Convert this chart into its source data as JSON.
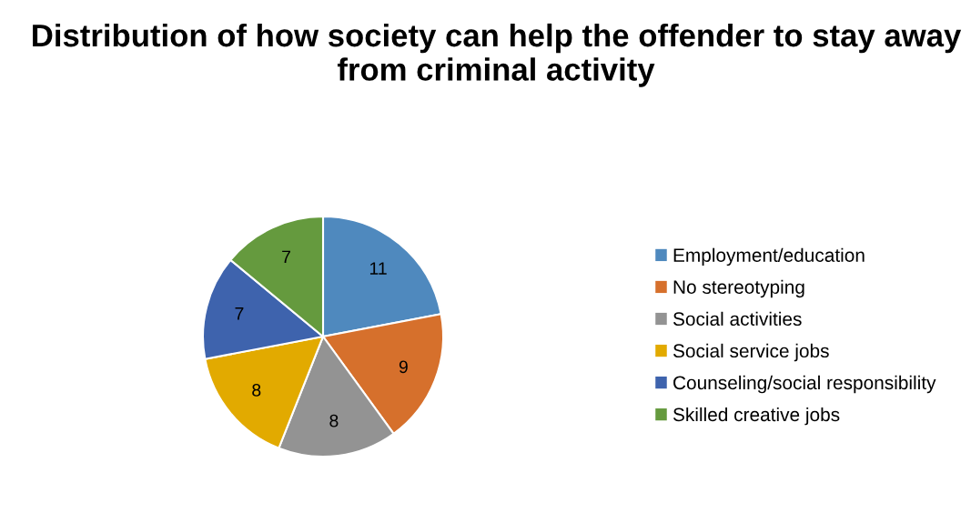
{
  "chart_data": {
    "type": "pie",
    "title": "Distribution of how society can help the offender to stay away from criminal activity",
    "categories": [
      "Employment/education",
      "No stereotyping",
      "Social activities",
      "Social service jobs",
      "Counseling/social responsibility",
      "Skilled creative jobs"
    ],
    "values": [
      11,
      9,
      8,
      8,
      7,
      7
    ],
    "colors": [
      "#4f89be",
      "#d6702c",
      "#939393",
      "#e2aa00",
      "#3e63ad",
      "#659a3e"
    ],
    "data_labels": true,
    "legend": "right"
  }
}
